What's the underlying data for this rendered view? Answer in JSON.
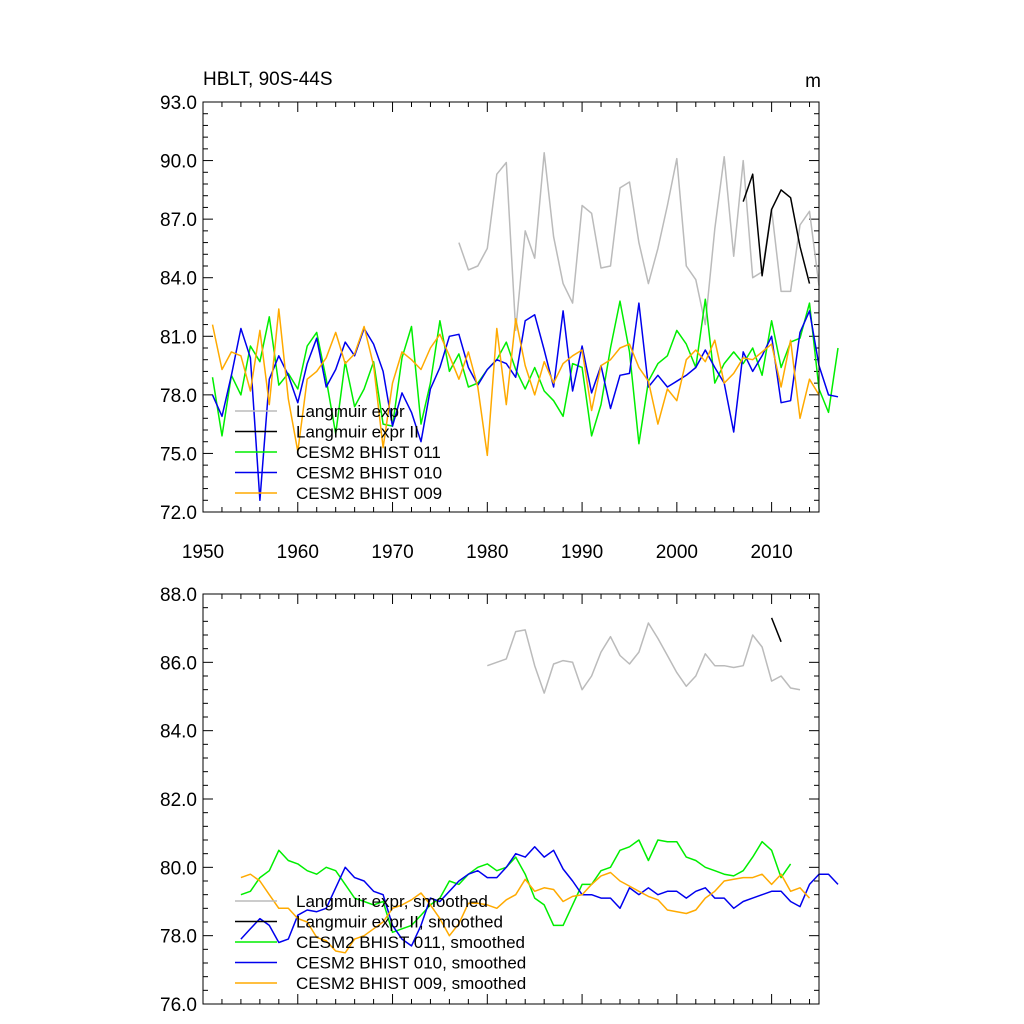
{
  "chart_data": [
    {
      "type": "line",
      "title": "HBLT, 90S-44S",
      "units": "m",
      "xlim": [
        1950,
        2015
      ],
      "ylim": [
        72,
        93
      ],
      "yticks": [
        72,
        75,
        78,
        81,
        84,
        87,
        90,
        93
      ],
      "ytick_labels": [
        "72.0",
        "75.0",
        "78.0",
        "81.0",
        "84.0",
        "87.0",
        "90.0",
        "93.0"
      ],
      "xticks": [
        1950,
        1960,
        1970,
        1980,
        1990,
        2000,
        2010
      ],
      "xtick_labels": [
        "1950",
        "1960",
        "1970",
        "1980",
        "1990",
        "2000",
        "2010"
      ],
      "legend_position": "bottom-left",
      "series": [
        {
          "name": "Langmuir expr",
          "color": "#bbbbbb",
          "x_start": 1977,
          "values": [
            85.8,
            84.4,
            84.6,
            85.5,
            89.3,
            89.9,
            81.3,
            86.4,
            85.0,
            90.4,
            86.1,
            83.7,
            82.7,
            87.7,
            87.3,
            84.5,
            84.6,
            88.6,
            88.9,
            85.8,
            83.7,
            85.5,
            87.7,
            90.1,
            84.6,
            83.9,
            81.6,
            86.5,
            90.2,
            85.1,
            90.0,
            84.0,
            84.3,
            87.5,
            83.3,
            83.3,
            86.7,
            87.4,
            83.6
          ]
        },
        {
          "name": "Langmuir expr II",
          "color": "#000000",
          "x_start": 2007,
          "values": [
            87.9,
            89.3,
            84.1,
            87.5,
            88.5,
            88.1,
            85.6,
            83.7
          ]
        },
        {
          "name": "CESM2 BHIST 011",
          "color": "#00ee00",
          "x_start": 1951,
          "values": [
            78.9,
            75.9,
            79.0,
            78.0,
            80.5,
            79.7,
            82.0,
            78.5,
            79.1,
            78.3,
            80.5,
            81.2,
            78.8,
            76.0,
            79.7,
            77.4,
            78.3,
            79.7,
            76.5,
            76.4,
            79.9,
            81.5,
            76.5,
            78.6,
            81.8,
            79.2,
            80.1,
            78.4,
            78.6,
            79.3,
            79.8,
            80.7,
            79.3,
            78.3,
            79.4,
            78.2,
            77.7,
            76.9,
            79.6,
            79.4,
            75.9,
            77.5,
            80.4,
            82.8,
            80.2,
            75.5,
            78.7,
            79.6,
            80.0,
            81.3,
            80.6,
            79.4,
            82.9,
            78.6,
            79.6,
            80.2,
            79.6,
            80.4,
            79.0,
            81.8,
            79.4,
            80.7,
            80.9,
            82.7,
            78.3,
            77.1,
            80.4
          ]
        },
        {
          "name": "CESM2 BHIST 010",
          "color": "#0000ee",
          "x_start": 1951,
          "values": [
            78.0,
            76.9,
            79.0,
            81.4,
            79.9,
            72.6,
            78.8,
            80.0,
            79.0,
            77.6,
            79.6,
            80.9,
            78.4,
            79.3,
            80.7,
            80.0,
            81.4,
            80.6,
            79.2,
            76.4,
            78.1,
            77.1,
            75.6,
            78.3,
            79.4,
            81.0,
            81.1,
            79.4,
            78.5,
            79.3,
            79.8,
            79.6,
            78.9,
            81.8,
            82.1,
            80.3,
            78.4,
            82.3,
            78.2,
            80.5,
            78.1,
            79.5,
            77.3,
            79.0,
            79.1,
            82.7,
            78.4,
            79.0,
            78.4,
            78.7,
            79.0,
            79.4,
            80.3,
            79.4,
            78.6,
            76.1,
            80.2,
            79.2,
            80.0,
            81.0,
            77.6,
            77.7,
            81.2,
            82.3,
            79.5,
            78.0,
            77.9
          ]
        },
        {
          "name": "CESM2 BHIST 009",
          "color": "#ffaa00",
          "x_start": 1951,
          "values": [
            81.6,
            79.3,
            80.2,
            80.0,
            78.2,
            81.3,
            77.5,
            82.4,
            77.8,
            75.1,
            78.8,
            79.2,
            79.9,
            81.2,
            79.6,
            80.1,
            81.5,
            79.5,
            75.3,
            78.6,
            80.2,
            79.8,
            79.3,
            80.4,
            81.1,
            80.0,
            78.8,
            80.2,
            78.4,
            74.9,
            81.4,
            77.5,
            81.9,
            79.5,
            78.0,
            79.7,
            78.6,
            79.6,
            80.0,
            80.3,
            77.2,
            79.5,
            79.8,
            80.4,
            80.6,
            79.4,
            78.7,
            76.5,
            78.3,
            77.7,
            79.8,
            80.3,
            79.7,
            80.8,
            78.6,
            79.1,
            79.9,
            79.8,
            80.2,
            80.6,
            78.4,
            80.8,
            76.8,
            78.8,
            78.0
          ]
        }
      ]
    },
    {
      "type": "line",
      "xlim": [
        1950,
        2015
      ],
      "ylim": [
        76,
        88
      ],
      "yticks": [
        76,
        78,
        80,
        82,
        84,
        86,
        88
      ],
      "ytick_labels": [
        "76.0",
        "78.0",
        "80.0",
        "82.0",
        "84.0",
        "86.0",
        "88.0"
      ],
      "xticks": [
        1950,
        1960,
        1970,
        1980,
        1990,
        2000,
        2010
      ],
      "legend_position": "bottom-left",
      "series": [
        {
          "name": "Langmuir expr, smoothed",
          "color": "#bbbbbb",
          "x_start": 1980,
          "values": [
            85.9,
            86.0,
            86.1,
            86.9,
            86.95,
            85.9,
            85.1,
            85.95,
            86.05,
            86.0,
            85.2,
            85.6,
            86.3,
            86.75,
            86.2,
            85.95,
            86.3,
            87.15,
            86.7,
            86.2,
            85.7,
            85.3,
            85.6,
            86.25,
            85.9,
            85.9,
            85.85,
            85.9,
            86.8,
            86.45,
            85.45,
            85.6,
            85.25,
            85.2
          ]
        },
        {
          "name": "Langmuir expr II, smoothed",
          "color": "#000000",
          "x_start": 2010,
          "values": [
            87.3,
            86.6
          ]
        },
        {
          "name": "CESM2 BHIST 011, smoothed",
          "color": "#00ee00",
          "x_start": 1954,
          "values": [
            79.2,
            79.3,
            79.7,
            79.9,
            80.5,
            80.2,
            80.1,
            79.9,
            79.8,
            80.0,
            79.9,
            79.5,
            79.1,
            79.0,
            78.9,
            79.0,
            78.1,
            78.2,
            78.3,
            78.6,
            78.9,
            79.1,
            79.6,
            79.5,
            79.8,
            80.0,
            80.1,
            79.9,
            80.0,
            80.3,
            79.8,
            79.1,
            78.9,
            78.3,
            78.3,
            78.9,
            79.5,
            79.5,
            79.9,
            80.0,
            80.5,
            80.6,
            80.8,
            80.2,
            80.8,
            80.75,
            80.75,
            80.3,
            80.2,
            80.0,
            79.9,
            79.8,
            79.75,
            79.9,
            80.3,
            80.75,
            80.5,
            79.7,
            80.1
          ]
        },
        {
          "name": "CESM2 BHIST 010, smoothed",
          "color": "#0000ee",
          "x_start": 1954,
          "values": [
            77.9,
            78.2,
            78.5,
            78.3,
            77.8,
            77.9,
            78.6,
            78.75,
            78.7,
            78.8,
            79.4,
            80.0,
            79.7,
            79.6,
            79.3,
            79.2,
            78.3,
            77.9,
            77.7,
            78.3,
            79.1,
            79.0,
            79.3,
            79.6,
            79.8,
            79.9,
            79.7,
            79.7,
            80.0,
            80.4,
            80.3,
            80.6,
            80.3,
            80.5,
            79.95,
            79.6,
            79.2,
            79.2,
            79.1,
            79.1,
            78.8,
            79.4,
            79.2,
            79.4,
            79.2,
            79.3,
            79.3,
            79.1,
            79.3,
            79.4,
            79.1,
            79.1,
            78.8,
            79.0,
            79.1,
            79.2,
            79.3,
            79.3,
            79.0,
            78.85,
            79.5,
            79.8,
            79.8,
            79.5
          ]
        },
        {
          "name": "CESM2 BHIST 009, smoothed",
          "color": "#ffaa00",
          "x_start": 1954,
          "values": [
            79.7,
            79.8,
            79.6,
            79.2,
            78.8,
            78.8,
            78.5,
            78.4,
            77.95,
            77.85,
            77.55,
            77.5,
            77.9,
            78.0,
            78.2,
            78.4,
            78.8,
            78.9,
            79.05,
            79.25,
            78.9,
            78.5,
            78.0,
            78.35,
            78.95,
            78.95,
            78.9,
            78.8,
            79.05,
            79.2,
            79.65,
            79.3,
            79.4,
            79.35,
            79.0,
            79.15,
            79.2,
            79.5,
            79.75,
            79.85,
            79.6,
            79.45,
            79.3,
            79.15,
            79.05,
            78.75,
            78.7,
            78.65,
            78.75,
            79.1,
            79.3,
            79.6,
            79.65,
            79.7,
            79.7,
            79.8,
            79.5,
            79.8,
            79.3,
            79.4,
            79.1
          ]
        }
      ]
    }
  ]
}
